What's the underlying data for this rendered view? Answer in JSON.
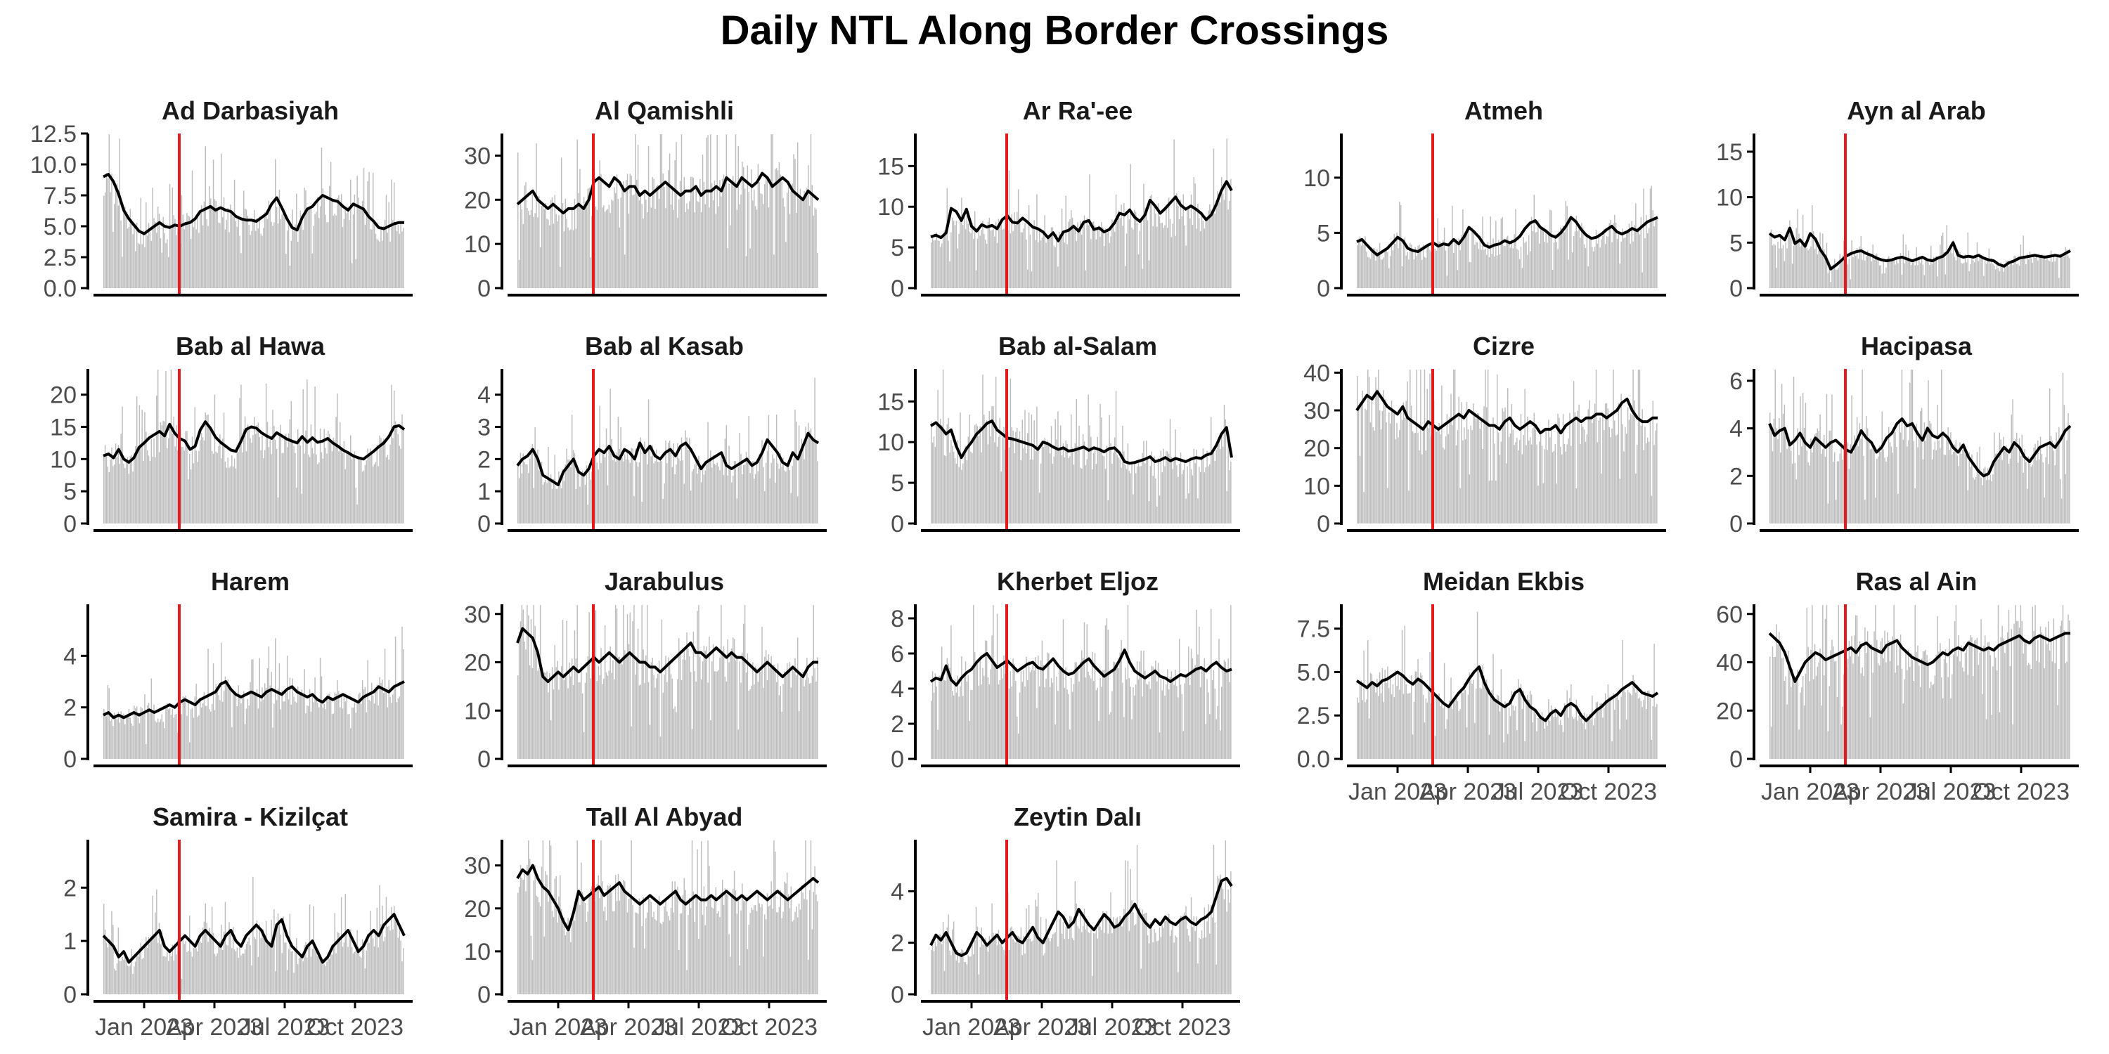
{
  "title": "Daily NTL Along Border Crossings",
  "colors": {
    "bars": "#bdbdbd",
    "line": "#000000",
    "event_line": "#e41a1c",
    "axis": "#000000",
    "tick_text": "#4d4d4d"
  },
  "x_tick_labels": [
    "Jan 2023",
    "Apr 2023",
    "Jul 2023",
    "Oct 2023"
  ],
  "chart_data": [
    {
      "type": "bar",
      "title": "Ad Darbasiyah",
      "ylim": [
        0,
        12.5
      ],
      "yticks": [
        "0.0",
        "2.5",
        "5.0",
        "7.5",
        "10.0",
        "12.5"
      ],
      "ytick_values": [
        0,
        2.5,
        5,
        7.5,
        10,
        12.5
      ],
      "line_knots": [
        9,
        9.2,
        8.6,
        7.6,
        6.3,
        5.6,
        5.1,
        4.6,
        4.4,
        4.7,
        5.0,
        5.3,
        5.0,
        4.9,
        5.1,
        5.0,
        5.2,
        5.3,
        5.6,
        6.2,
        6.4,
        6.6,
        6.3,
        6.5,
        6.3,
        6.2,
        5.8,
        5.6,
        5.5,
        5.5,
        5.4,
        5.7,
        6.0,
        6.8,
        7.3,
        6.5,
        5.6,
        4.9,
        4.7,
        5.7,
        6.4,
        6.6,
        7.1,
        7.5,
        7.3,
        7.1,
        7.0,
        6.6,
        6.3,
        6.8,
        6.6,
        6.4,
        5.8,
        5.4,
        4.9,
        4.8,
        5.0,
        5.2,
        5.3,
        5.3
      ]
    },
    {
      "type": "bar",
      "title": "Al Qamishli",
      "ylim": [
        0,
        35
      ],
      "yticks": [
        "0",
        "10",
        "20",
        "30"
      ],
      "ytick_values": [
        0,
        10,
        20,
        30
      ],
      "line_knots": [
        19,
        20,
        21,
        22,
        20,
        19,
        18,
        19,
        18,
        17,
        18,
        18,
        19,
        18,
        20,
        24,
        25,
        24,
        23,
        25,
        24,
        22,
        23,
        23,
        21,
        22,
        21,
        22,
        23,
        24,
        23,
        22,
        21,
        22,
        22,
        23,
        21,
        22,
        22,
        23,
        22,
        25,
        24,
        23,
        25,
        24,
        23,
        24,
        26,
        25,
        23,
        24,
        25,
        24,
        22,
        21,
        20,
        22,
        21,
        20
      ]
    },
    {
      "type": "bar",
      "title": "Ar Ra'-ee",
      "ylim": [
        0,
        19
      ],
      "yticks": [
        "0",
        "5",
        "10",
        "15"
      ],
      "ytick_values": [
        0,
        5,
        10,
        15
      ],
      "line_knots": [
        6.3,
        6.5,
        6.2,
        6.8,
        9.8,
        9.4,
        8.3,
        9.7,
        7.6,
        7.0,
        7.8,
        7.5,
        7.7,
        7.3,
        8.4,
        8.9,
        8.1,
        8.0,
        8.6,
        8.1,
        7.5,
        7.3,
        6.9,
        6.2,
        6.8,
        5.8,
        6.9,
        7.1,
        7.6,
        7.0,
        8.1,
        8.3,
        7.2,
        7.4,
        6.9,
        7.2,
        8.0,
        9.2,
        9.0,
        9.6,
        8.7,
        8.2,
        9.0,
        10.8,
        10.1,
        9.2,
        9.8,
        10.5,
        11.2,
        10.2,
        9.7,
        10.1,
        9.7,
        9.2,
        8.4,
        9.0,
        10.3,
        12.0,
        13.1,
        12.0
      ]
    },
    {
      "type": "bar",
      "title": "Atmeh",
      "ylim": [
        0,
        14
      ],
      "yticks": [
        "0",
        "5",
        "10"
      ],
      "ytick_values": [
        0,
        5,
        10
      ],
      "line_knots": [
        4.2,
        4.4,
        3.9,
        3.4,
        3.0,
        3.3,
        3.6,
        4.1,
        4.6,
        4.3,
        3.6,
        3.4,
        3.3,
        3.6,
        3.9,
        4.1,
        3.8,
        4.0,
        3.9,
        4.4,
        4.0,
        4.6,
        5.5,
        5.1,
        4.6,
        3.9,
        3.7,
        3.9,
        4.0,
        4.3,
        4.1,
        4.3,
        4.7,
        5.4,
        5.9,
        6.1,
        5.5,
        5.2,
        4.8,
        4.6,
        5.0,
        5.6,
        6.4,
        6.0,
        5.3,
        4.8,
        4.5,
        4.6,
        4.9,
        5.3,
        5.6,
        5.1,
        4.9,
        5.1,
        5.4,
        5.2,
        5.6,
        6.0,
        6.2,
        6.4
      ]
    },
    {
      "type": "bar",
      "title": "Ayn al Arab",
      "ylim": [
        0,
        17
      ],
      "yticks": [
        "0",
        "5",
        "10",
        "15"
      ],
      "ytick_values": [
        0,
        5,
        10,
        15
      ],
      "line_knots": [
        6.0,
        5.6,
        5.8,
        5.3,
        6.6,
        4.9,
        5.3,
        4.6,
        6.0,
        5.4,
        4.2,
        3.4,
        2.1,
        2.5,
        3.0,
        3.5,
        3.8,
        4.0,
        4.1,
        3.8,
        3.6,
        3.3,
        3.1,
        3.0,
        3.1,
        3.3,
        3.4,
        3.2,
        3.0,
        3.2,
        3.4,
        3.1,
        3.0,
        3.3,
        3.5,
        4.0,
        5.0,
        3.6,
        3.4,
        3.5,
        3.4,
        3.6,
        3.3,
        3.1,
        3.0,
        2.6,
        2.4,
        2.8,
        3.0,
        3.3,
        3.4,
        3.5,
        3.6,
        3.5,
        3.4,
        3.5,
        3.6,
        3.5,
        3.8,
        4.1
      ]
    },
    {
      "type": "bar",
      "title": "Bab al Hawa",
      "ylim": [
        0,
        24
      ],
      "yticks": [
        "0",
        "5",
        "10",
        "15",
        "20"
      ],
      "ytick_values": [
        0,
        5,
        10,
        15,
        20
      ],
      "line_knots": [
        10.5,
        10.8,
        10.2,
        11.5,
        10.0,
        9.5,
        10.2,
        11.8,
        12.5,
        13.3,
        13.8,
        14.3,
        13.6,
        15.4,
        14.0,
        13.2,
        12.8,
        11.5,
        12.0,
        14.5,
        15.8,
        14.8,
        13.4,
        12.6,
        12.0,
        11.4,
        11.2,
        12.8,
        14.6,
        15.0,
        14.8,
        14.1,
        13.6,
        13.2,
        14.1,
        13.6,
        13.1,
        12.8,
        12.5,
        13.5,
        12.6,
        13.3,
        12.6,
        12.8,
        13.2,
        12.5,
        12.0,
        11.4,
        11.0,
        10.5,
        10.2,
        10.0,
        10.6,
        11.2,
        11.9,
        12.5,
        13.5,
        15.0,
        15.2,
        14.6
      ]
    },
    {
      "type": "bar",
      "title": "Bab al Kasab",
      "ylim": [
        0,
        4.8
      ],
      "yticks": [
        "0",
        "1",
        "2",
        "3",
        "4"
      ],
      "ytick_values": [
        0,
        1,
        2,
        3,
        4
      ],
      "line_knots": [
        1.8,
        2.0,
        2.1,
        2.3,
        2.0,
        1.5,
        1.4,
        1.3,
        1.2,
        1.6,
        1.8,
        2.0,
        1.6,
        1.5,
        1.7,
        2.1,
        2.3,
        2.2,
        2.4,
        2.1,
        2.0,
        2.3,
        2.2,
        2.0,
        2.5,
        2.2,
        2.4,
        2.1,
        2.0,
        2.2,
        2.3,
        2.1,
        2.4,
        2.5,
        2.3,
        2.0,
        1.7,
        1.9,
        2.0,
        2.1,
        2.2,
        1.8,
        1.7,
        1.8,
        1.9,
        2.0,
        1.8,
        1.9,
        2.2,
        2.6,
        2.4,
        2.2,
        1.9,
        1.8,
        2.2,
        2.0,
        2.4,
        2.8,
        2.6,
        2.5
      ]
    },
    {
      "type": "bar",
      "title": "Bab al-Salam",
      "ylim": [
        0,
        19
      ],
      "yticks": [
        "0",
        "5",
        "10",
        "15"
      ],
      "ytick_values": [
        0,
        5,
        10,
        15
      ],
      "line_knots": [
        12.0,
        12.4,
        11.8,
        11.0,
        11.5,
        9.5,
        8.1,
        9.2,
        10.0,
        11.0,
        11.6,
        12.3,
        12.6,
        11.5,
        11.0,
        10.5,
        10.4,
        10.2,
        10.0,
        9.8,
        9.6,
        9.1,
        10.0,
        9.8,
        9.4,
        9.1,
        9.3,
        8.9,
        9.0,
        9.2,
        9.4,
        9.0,
        9.3,
        9.1,
        8.8,
        9.2,
        9.3,
        8.7,
        7.6,
        7.4,
        7.5,
        7.7,
        7.9,
        8.2,
        7.6,
        7.8,
        8.1,
        7.7,
        8.0,
        7.8,
        7.6,
        7.9,
        8.1,
        8.0,
        8.4,
        8.6,
        9.6,
        11.0,
        11.8,
        8.1
      ]
    },
    {
      "type": "bar",
      "title": "Cizre",
      "ylim": [
        0,
        41
      ],
      "yticks": [
        "0",
        "10",
        "20",
        "30",
        "40"
      ],
      "ytick_values": [
        0,
        10,
        20,
        30,
        40
      ],
      "line_knots": [
        30,
        32,
        34,
        33,
        35,
        33,
        31,
        30,
        29,
        31,
        28,
        27,
        26,
        25,
        27,
        26,
        25,
        26,
        27,
        28,
        29,
        28,
        30,
        29,
        28,
        27,
        26,
        26,
        25,
        27,
        28,
        26,
        25,
        26,
        27,
        26,
        24,
        25,
        25,
        26,
        24,
        26,
        27,
        28,
        27,
        28,
        28,
        29,
        29,
        28,
        29,
        30,
        32,
        33,
        30,
        28,
        27,
        27,
        28,
        28
      ]
    },
    {
      "type": "bar",
      "title": "Hacipasa",
      "ylim": [
        0,
        6.5
      ],
      "yticks": [
        "0",
        "2",
        "4",
        "6"
      ],
      "ytick_values": [
        0,
        2,
        4,
        6
      ],
      "line_knots": [
        4.2,
        3.7,
        3.9,
        4.0,
        3.3,
        3.5,
        3.8,
        3.4,
        3.2,
        3.6,
        3.4,
        3.2,
        3.4,
        3.5,
        3.3,
        3.1,
        3.0,
        3.4,
        3.9,
        3.6,
        3.4,
        3.0,
        3.2,
        3.6,
        3.8,
        4.2,
        4.4,
        4.1,
        4.2,
        3.8,
        3.5,
        4.0,
        3.7,
        3.6,
        3.8,
        3.6,
        3.2,
        3.0,
        3.3,
        2.8,
        2.5,
        2.2,
        2.0,
        2.1,
        2.6,
        2.9,
        3.2,
        3.0,
        3.4,
        3.2,
        2.8,
        2.6,
        2.9,
        3.2,
        3.3,
        3.4,
        3.2,
        3.5,
        3.9,
        4.1
      ]
    },
    {
      "type": "bar",
      "title": "Harem",
      "ylim": [
        0,
        6
      ],
      "yticks": [
        "0",
        "2",
        "4"
      ],
      "ytick_values": [
        0,
        2,
        4
      ],
      "line_knots": [
        1.7,
        1.8,
        1.6,
        1.7,
        1.6,
        1.7,
        1.8,
        1.7,
        1.8,
        1.9,
        1.8,
        1.9,
        2.0,
        2.1,
        2.0,
        2.2,
        2.3,
        2.2,
        2.1,
        2.3,
        2.4,
        2.5,
        2.6,
        2.9,
        3.0,
        2.7,
        2.5,
        2.4,
        2.5,
        2.6,
        2.5,
        2.4,
        2.6,
        2.7,
        2.6,
        2.5,
        2.7,
        2.8,
        2.6,
        2.5,
        2.4,
        2.5,
        2.3,
        2.2,
        2.4,
        2.3,
        2.4,
        2.5,
        2.4,
        2.3,
        2.2,
        2.4,
        2.5,
        2.6,
        2.8,
        2.7,
        2.6,
        2.8,
        2.9,
        3.0
      ]
    },
    {
      "type": "bar",
      "title": "Jarabulus",
      "ylim": [
        0,
        32
      ],
      "yticks": [
        "0",
        "10",
        "20",
        "30"
      ],
      "ytick_values": [
        0,
        10,
        20,
        30
      ],
      "line_knots": [
        24,
        27,
        26,
        25,
        22,
        17,
        16,
        17,
        18,
        17,
        18,
        19,
        18,
        19,
        20,
        21,
        20,
        21,
        22,
        21,
        20,
        21,
        22,
        21,
        20,
        20,
        19,
        19,
        18,
        19,
        20,
        21,
        22,
        23,
        24,
        22,
        22,
        21,
        22,
        23,
        22,
        21,
        22,
        21,
        21,
        20,
        19,
        18,
        19,
        20,
        19,
        18,
        17,
        18,
        19,
        18,
        17,
        19,
        20,
        20
      ]
    },
    {
      "type": "bar",
      "title": "Kherbet Eljoz",
      "ylim": [
        0,
        8.8
      ],
      "yticks": [
        "0",
        "2",
        "4",
        "6",
        "8"
      ],
      "ytick_values": [
        0,
        2,
        4,
        6,
        8
      ],
      "line_knots": [
        4.4,
        4.6,
        4.5,
        5.3,
        4.5,
        4.2,
        4.6,
        4.9,
        5.1,
        5.5,
        5.8,
        6.0,
        5.6,
        5.2,
        5.4,
        5.6,
        5.3,
        5.0,
        5.2,
        5.4,
        5.5,
        5.2,
        5.1,
        5.4,
        5.7,
        5.3,
        5.0,
        4.8,
        4.9,
        5.2,
        5.5,
        5.7,
        5.3,
        5.0,
        4.7,
        4.9,
        5.1,
        5.6,
        6.2,
        5.5,
        5.0,
        4.8,
        4.6,
        4.8,
        5.0,
        4.7,
        4.6,
        4.4,
        4.6,
        4.8,
        4.7,
        4.9,
        5.1,
        5.2,
        5.0,
        5.3,
        5.5,
        5.2,
        5.0,
        5.1
      ]
    },
    {
      "type": "bar",
      "title": "Meidan Ekbis",
      "ylim": [
        0,
        8.9
      ],
      "yticks": [
        "0.0",
        "2.5",
        "5.0",
        "7.5"
      ],
      "ytick_values": [
        0,
        2.5,
        5,
        7.5
      ],
      "line_knots": [
        4.5,
        4.3,
        4.1,
        4.4,
        4.2,
        4.5,
        4.6,
        4.8,
        5.0,
        4.8,
        4.5,
        4.3,
        4.6,
        4.4,
        4.1,
        3.8,
        3.5,
        3.2,
        3.0,
        3.4,
        3.8,
        4.1,
        4.6,
        5.0,
        5.3,
        4.4,
        3.8,
        3.4,
        3.2,
        3.0,
        3.2,
        3.8,
        4.0,
        3.4,
        3.0,
        2.8,
        2.4,
        2.2,
        2.6,
        2.8,
        2.5,
        3.0,
        3.2,
        3.0,
        2.5,
        2.2,
        2.5,
        2.8,
        3.0,
        3.3,
        3.5,
        3.7,
        4.0,
        4.2,
        4.4,
        4.1,
        3.8,
        3.7,
        3.6,
        3.8
      ]
    },
    {
      "type": "bar",
      "title": "Ras al Ain",
      "ylim": [
        0,
        64
      ],
      "yticks": [
        "0",
        "20",
        "40",
        "60"
      ],
      "ytick_values": [
        0,
        20,
        40,
        60
      ],
      "line_knots": [
        52,
        50,
        48,
        44,
        38,
        32,
        36,
        40,
        42,
        44,
        43,
        41,
        42,
        43,
        44,
        45,
        46,
        44,
        47,
        48,
        46,
        45,
        44,
        47,
        48,
        49,
        46,
        44,
        42,
        41,
        40,
        39,
        40,
        42,
        44,
        43,
        45,
        46,
        45,
        48,
        47,
        46,
        45,
        46,
        45,
        47,
        48,
        49,
        50,
        51,
        49,
        48,
        50,
        51,
        50,
        49,
        50,
        51,
        52,
        52
      ]
    },
    {
      "type": "bar",
      "title": "Samira - Kizilçat",
      "ylim": [
        0,
        2.9
      ],
      "yticks": [
        "0",
        "1",
        "2"
      ],
      "ytick_values": [
        0,
        1,
        2
      ],
      "line_knots": [
        1.1,
        1.0,
        0.9,
        0.7,
        0.8,
        0.6,
        0.7,
        0.8,
        0.9,
        1.0,
        1.1,
        1.2,
        0.9,
        0.8,
        0.9,
        1.0,
        1.1,
        1.0,
        0.9,
        1.1,
        1.2,
        1.1,
        1.0,
        0.9,
        1.1,
        1.2,
        1.0,
        0.9,
        1.1,
        1.2,
        1.3,
        1.2,
        1.0,
        0.9,
        1.3,
        1.4,
        1.1,
        0.9,
        0.8,
        0.7,
        0.9,
        1.0,
        0.8,
        0.6,
        0.7,
        0.9,
        1.0,
        1.1,
        1.2,
        1.0,
        0.8,
        0.9,
        1.1,
        1.2,
        1.1,
        1.3,
        1.4,
        1.5,
        1.3,
        1.1
      ]
    },
    {
      "type": "bar",
      "title": "Tall Al Abyad",
      "ylim": [
        0,
        36
      ],
      "yticks": [
        "0",
        "10",
        "20",
        "30"
      ],
      "ytick_values": [
        0,
        10,
        20,
        30
      ],
      "line_knots": [
        27,
        29,
        28,
        30,
        27,
        25,
        24,
        22,
        20,
        17,
        15,
        19,
        24,
        22,
        23,
        24,
        25,
        23,
        24,
        25,
        26,
        24,
        23,
        22,
        21,
        22,
        23,
        22,
        21,
        22,
        23,
        24,
        22,
        21,
        22,
        23,
        22,
        22,
        23,
        22,
        23,
        24,
        23,
        22,
        23,
        22,
        23,
        24,
        23,
        22,
        23,
        24,
        23,
        22,
        23,
        24,
        25,
        26,
        27,
        26
      ]
    },
    {
      "type": "bar",
      "title": "Zeytin Dalı",
      "ylim": [
        0,
        6
      ],
      "yticks": [
        "0",
        "2",
        "4"
      ],
      "ytick_values": [
        0,
        2,
        4
      ],
      "line_knots": [
        1.9,
        2.3,
        2.1,
        2.4,
        2.0,
        1.6,
        1.5,
        1.6,
        2.0,
        2.4,
        2.2,
        1.9,
        2.1,
        2.3,
        2.0,
        2.2,
        2.4,
        2.1,
        2.0,
        2.3,
        2.6,
        2.2,
        2.0,
        2.4,
        2.8,
        3.2,
        3.0,
        2.6,
        2.8,
        3.3,
        3.0,
        2.7,
        2.5,
        2.8,
        3.1,
        2.9,
        2.6,
        2.7,
        3.0,
        3.2,
        3.5,
        3.1,
        2.8,
        2.6,
        2.9,
        2.7,
        3.0,
        2.8,
        2.7,
        2.9,
        3.0,
        2.8,
        2.7,
        2.9,
        3.0,
        3.2,
        3.8,
        4.4,
        4.5,
        4.2
      ]
    }
  ]
}
